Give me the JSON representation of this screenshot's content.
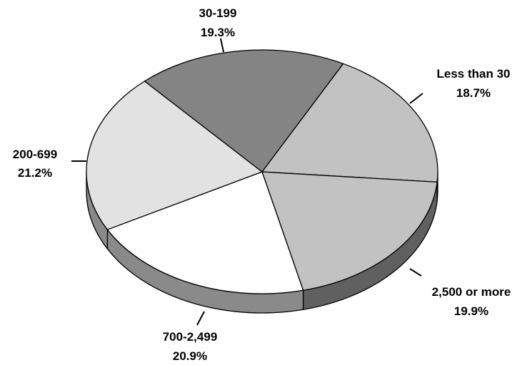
{
  "chart_data": {
    "type": "pie",
    "style": "3d-tilted",
    "slices": [
      {
        "label": "Less than 30",
        "value_label": "18.7%",
        "value": 18.7,
        "color": "#c2c2c2"
      },
      {
        "label": "2,500 or more",
        "value_label": "19.9%",
        "value": 19.9,
        "color": "#c2c2c2"
      },
      {
        "label": "700-2,499",
        "value_label": "20.9%",
        "value": 20.9,
        "color": "#ffffff"
      },
      {
        "label": "200-699",
        "value_label": "21.2%",
        "value": 21.2,
        "color": "#e2e2e2"
      },
      {
        "label": "30-199",
        "value_label": "19.3%",
        "value": 19.3,
        "color": "#848484"
      }
    ],
    "side_colors": {
      "dark": "#606060",
      "medium": "#8a8a8a"
    },
    "outline_color": "#000000"
  }
}
